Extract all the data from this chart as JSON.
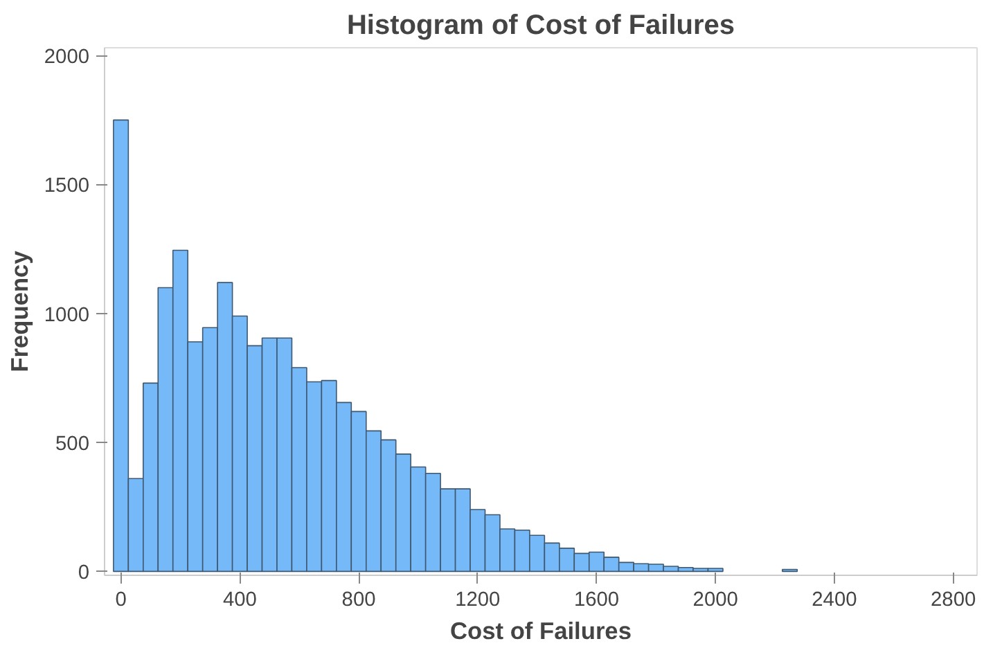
{
  "chart_data": {
    "type": "histogram",
    "title": "Histogram of Cost of Failures",
    "xlabel": "Cost of Failures",
    "ylabel": "Frequency",
    "bins": [
      -25,
      25,
      75,
      125,
      175,
      225,
      275,
      325,
      375,
      425,
      475,
      525,
      575,
      625,
      675,
      725,
      775,
      825,
      875,
      925,
      975,
      1025,
      1075,
      1125,
      1175,
      1225,
      1275,
      1325,
      1375,
      1425,
      1475,
      1525,
      1575,
      1625,
      1675,
      1725,
      1775,
      1825,
      1875,
      1925,
      1975,
      2025,
      2075,
      2125,
      2175,
      2225,
      2275
    ],
    "values": [
      1750,
      360,
      730,
      1100,
      1245,
      890,
      945,
      1120,
      990,
      875,
      905,
      905,
      790,
      735,
      740,
      655,
      620,
      545,
      510,
      455,
      405,
      380,
      320,
      320,
      240,
      220,
      165,
      160,
      140,
      110,
      90,
      70,
      75,
      55,
      35,
      30,
      28,
      20,
      15,
      12,
      12,
      0,
      0,
      0,
      0,
      8
    ],
    "color": "#75b9f9",
    "xlim": [
      -55,
      2880
    ],
    "ylim": [
      -15,
      2030
    ],
    "xticks": [
      0,
      400,
      800,
      1200,
      1600,
      2000,
      2400,
      2800
    ],
    "yticks": [
      0,
      500,
      1000,
      1500,
      2000
    ],
    "grid": false
  }
}
